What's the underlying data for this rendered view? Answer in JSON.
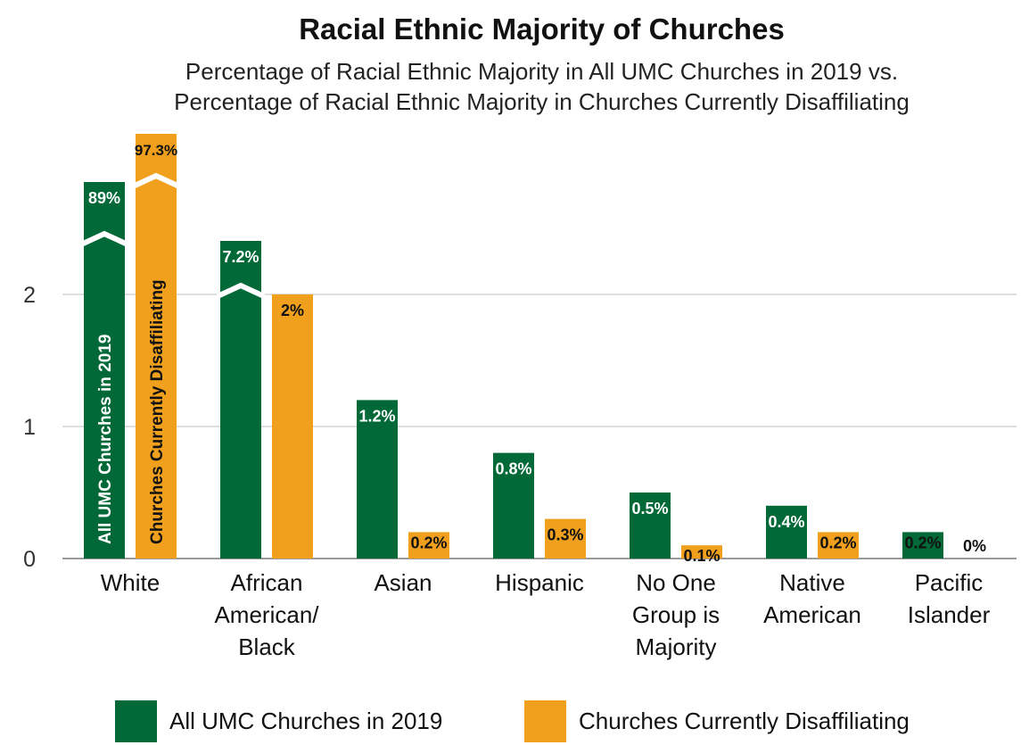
{
  "chart_data": {
    "type": "bar",
    "title": "Racial Ethnic Majority of Churches",
    "subtitle_lines": [
      "Percentage of Racial Ethnic Majority in All UMC Churches in 2019 vs.",
      "Percentage of Racial Ethnic Majority in Churches Currently Disaffiliating"
    ],
    "categories": [
      [
        "White"
      ],
      [
        "African",
        "American/",
        "Black"
      ],
      [
        "Asian"
      ],
      [
        "Hispanic"
      ],
      [
        "No One",
        "Group is",
        "Majority"
      ],
      [
        "Native",
        "American"
      ],
      [
        "Pacific",
        "Islander"
      ]
    ],
    "series": [
      {
        "name": "All UMC Churches in 2019",
        "color": "#006937",
        "values": [
          89,
          7.2,
          1.2,
          0.8,
          0.5,
          0.4,
          0.2
        ],
        "labels": [
          "89%",
          "7.2%",
          "1.2%",
          "0.8%",
          "0.5%",
          "0.4%",
          "0.2%"
        ],
        "truncated": [
          true,
          true,
          false,
          false,
          false,
          false,
          false
        ]
      },
      {
        "name": "Churches Currently Disaffiliating",
        "color": "#f0a01c",
        "values": [
          97.3,
          2,
          0.2,
          0.3,
          0.1,
          0.2,
          0
        ],
        "labels": [
          "97.3%",
          "2%",
          "0.2%",
          "0.3%",
          "0.1%",
          "0.2%",
          "0%"
        ],
        "truncated": [
          true,
          false,
          false,
          false,
          false,
          false,
          false
        ]
      }
    ],
    "in_bar_labels": [
      "All UMC Churches in 2019",
      "Churches Currently Disaffiliating"
    ],
    "y_ticks": [
      "0",
      "1",
      "2"
    ],
    "ylim": [
      0,
      2.9
    ],
    "axis_break": true,
    "grid": true,
    "legend_position": "bottom"
  }
}
